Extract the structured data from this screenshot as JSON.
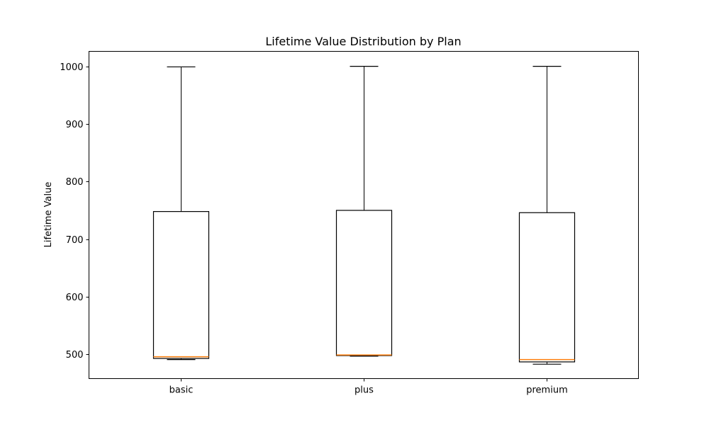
{
  "chart_data": {
    "type": "box",
    "title": "Lifetime Value Distribution by Plan",
    "xlabel": "",
    "ylabel": "Lifetime Value",
    "ylim": [
      458,
      1026
    ],
    "yticks": [
      500,
      600,
      700,
      800,
      900,
      1000
    ],
    "categories": [
      "basic",
      "plus",
      "premium"
    ],
    "boxes": [
      {
        "category": "basic",
        "whisker_low": 491,
        "q1": 493,
        "median": 496,
        "q3": 748,
        "whisker_high": 999
      },
      {
        "category": "plus",
        "whisker_low": 497,
        "q1": 498,
        "median": 499,
        "q3": 750,
        "whisker_high": 1000
      },
      {
        "category": "premium",
        "whisker_low": 483,
        "q1": 487,
        "median": 491,
        "q3": 746,
        "whisker_high": 1000
      }
    ],
    "grid": false,
    "colors": {
      "box": "#000000",
      "median": "#ff7f0e",
      "background": "#ffffff"
    }
  }
}
